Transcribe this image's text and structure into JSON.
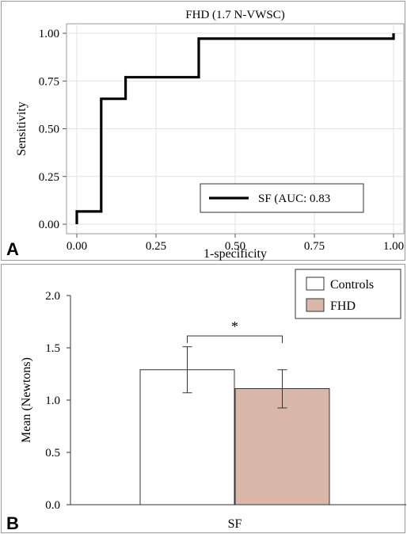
{
  "chart_data": [
    {
      "panel_letter": "A",
      "type": "line",
      "title": "FHD (1.7 N-VWSC)",
      "xlabel": "1-specificity",
      "ylabel": "Sensitivity",
      "xlim": [
        0,
        1
      ],
      "ylim": [
        0,
        1
      ],
      "x_ticks": [
        "0.00",
        "0.25",
        "0.50",
        "0.75",
        "1.00"
      ],
      "y_ticks": [
        "0.00",
        "0.25",
        "0.50",
        "0.75",
        "1.00"
      ],
      "grid": true,
      "legend_position": "bottom-right",
      "series": [
        {
          "name": "SF (AUC: 0.83",
          "color": "#000000",
          "x": [
            0.0,
            0.0,
            0.077,
            0.077,
            0.154,
            0.154,
            0.385,
            0.385,
            1.0,
            1.0
          ],
          "y": [
            0.0,
            0.067,
            0.067,
            0.657,
            0.657,
            0.77,
            0.77,
            0.972,
            0.972,
            1.0
          ]
        }
      ]
    },
    {
      "panel_letter": "B",
      "type": "bar",
      "title": "",
      "xlabel": "SF",
      "ylabel": "Mean (Newtons)",
      "ylim": [
        0,
        2.0
      ],
      "y_ticks": [
        "0.0",
        "0.5",
        "1.0",
        "1.5",
        "2.0"
      ],
      "grid": false,
      "legend_position": "top-right",
      "significance_mark": "*",
      "series": [
        {
          "name": "Controls",
          "value": 1.29,
          "error_low": 1.07,
          "error_high": 1.51,
          "color": "#ffffff"
        },
        {
          "name": "FHD",
          "value": 1.11,
          "error_low": 0.925,
          "error_high": 1.29,
          "color": "#d9b8aa"
        }
      ]
    }
  ]
}
